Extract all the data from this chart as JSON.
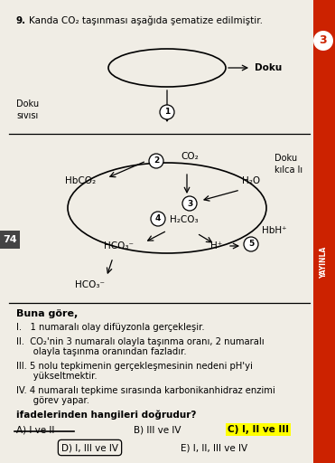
{
  "title_num": "9.",
  "title_text": "Kanda CO₂ taşınması aşağıda şematize edilmiştir.",
  "page_num": "74",
  "doku_label": "Doku",
  "doku_sivisi": "Doku\nsıvısı",
  "doku_kilcali": "Doku\nkılca lı",
  "bg_color": "#f0ede5",
  "red_color": "#cc2200",
  "buna_gore": "Buna göre,",
  "item1": "I.   1 numaralı olay difüyzonla gerçekleşir.",
  "item2a": "II.  CO₂'nin 3 numaralı olayla taşınma oranı, 2 numaralı",
  "item2b": "      olayla taşınma oranından fazladır.",
  "item3a": "III. 5 nolu tepkimenin gerçekleşmesinin nedeni pH'yi",
  "item3b": "      yükseltmektir.",
  "item4a": "IV. 4 numaralı tepkime sırasında karbonikanhidraz enzimi",
  "item4b": "      görev yapar.",
  "question": "ifadelerinden hangileri doğrudur?",
  "ans_A": "A) I ve II",
  "ans_B": "B) III ve IV",
  "ans_C": "C) I, II ve III",
  "ans_D": "D) I, III ve IV",
  "ans_E": "E) I, II, III ve IV",
  "yayinla": "YAYINLA"
}
